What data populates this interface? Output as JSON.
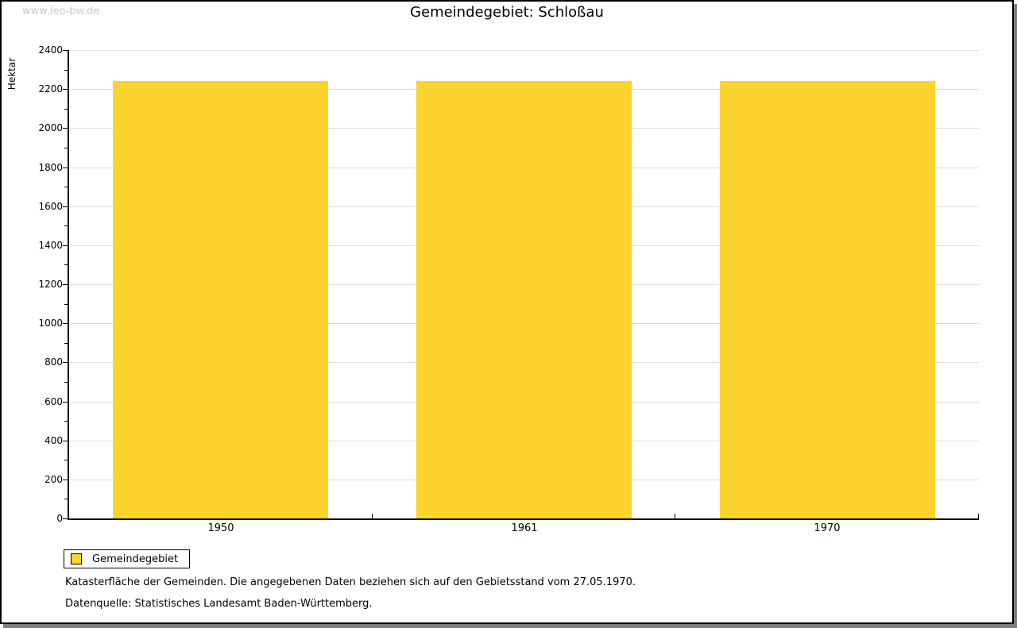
{
  "watermark": "www.leo-bw.de",
  "title": "Gemeindegebiet: Schloßau",
  "chart_data": {
    "type": "bar",
    "title": "Gemeindegebiet: Schloßau",
    "categories": [
      "1950",
      "1961",
      "1970"
    ],
    "series": [
      {
        "name": "Gemeindegebiet",
        "values": [
          2243,
          2243,
          2243
        ]
      }
    ],
    "xlabel": "",
    "ylabel": "Hektar",
    "ylim": [
      0,
      2400
    ],
    "ytick_step": 200,
    "yminor_step": 100,
    "grid": true,
    "legend_position": "bottom-left",
    "bar_color": "#fdd32e",
    "grid_color": "#dcdcdc",
    "axis_color": "#000000"
  },
  "legend": {
    "label": "Gemeindegebiet",
    "swatch_color": "#fdd32e"
  },
  "footnotes": [
    "Katasterfläche der Gemeinden. Die angegebenen Daten beziehen sich auf den Gebietsstand vom 27.05.1970.",
    "Datenquelle: Statistisches Landesamt Baden-Württemberg."
  ]
}
